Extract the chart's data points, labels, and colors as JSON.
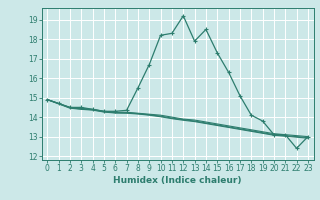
{
  "title": "",
  "xlabel": "Humidex (Indice chaleur)",
  "bg_color": "#cce8e8",
  "grid_color": "#ffffff",
  "line_color": "#2d7d6e",
  "xlim": [
    -0.5,
    23.5
  ],
  "ylim": [
    11.8,
    19.6
  ],
  "yticks": [
    12,
    13,
    14,
    15,
    16,
    17,
    18,
    19
  ],
  "xticks": [
    0,
    1,
    2,
    3,
    4,
    5,
    6,
    7,
    8,
    9,
    10,
    11,
    12,
    13,
    14,
    15,
    16,
    17,
    18,
    19,
    20,
    21,
    22,
    23
  ],
  "main_x": [
    0,
    1,
    2,
    3,
    4,
    5,
    6,
    7,
    8,
    9,
    10,
    11,
    12,
    13,
    14,
    15,
    16,
    17,
    18,
    19,
    20,
    21,
    22,
    23
  ],
  "main_y": [
    14.9,
    14.7,
    14.5,
    14.5,
    14.4,
    14.3,
    14.3,
    14.35,
    15.5,
    16.7,
    18.2,
    18.3,
    19.2,
    17.9,
    18.5,
    17.3,
    16.3,
    15.1,
    14.1,
    13.8,
    13.1,
    13.1,
    12.4,
    13.0
  ],
  "flat1_x": [
    0,
    1,
    2,
    3,
    4,
    5,
    6,
    7,
    8,
    9,
    10,
    11,
    12,
    13,
    14,
    15,
    16,
    17,
    18,
    19,
    20,
    21,
    22,
    23
  ],
  "flat1_y": [
    14.9,
    14.7,
    14.5,
    14.45,
    14.4,
    14.3,
    14.25,
    14.25,
    14.2,
    14.15,
    14.1,
    14.0,
    13.9,
    13.85,
    13.75,
    13.65,
    13.55,
    13.45,
    13.35,
    13.25,
    13.15,
    13.1,
    13.05,
    13.0
  ],
  "flat2_x": [
    0,
    1,
    2,
    3,
    4,
    5,
    6,
    7,
    8,
    9,
    10,
    11,
    12,
    13,
    14,
    15,
    16,
    17,
    18,
    19,
    20,
    21,
    22,
    23
  ],
  "flat2_y": [
    14.9,
    14.7,
    14.48,
    14.42,
    14.38,
    14.28,
    14.23,
    14.22,
    14.18,
    14.12,
    14.05,
    13.95,
    13.87,
    13.8,
    13.7,
    13.6,
    13.5,
    13.4,
    13.3,
    13.2,
    13.1,
    13.05,
    13.0,
    12.95
  ],
  "flat3_x": [
    0,
    1,
    2,
    3,
    4,
    5,
    6,
    7,
    8,
    9,
    10,
    11,
    12,
    13,
    14,
    15,
    16,
    17,
    18,
    19,
    20,
    21,
    22,
    23
  ],
  "flat3_y": [
    14.9,
    14.68,
    14.46,
    14.4,
    14.36,
    14.26,
    14.21,
    14.2,
    14.16,
    14.1,
    14.02,
    13.92,
    13.84,
    13.77,
    13.67,
    13.57,
    13.47,
    13.37,
    13.27,
    13.17,
    13.07,
    13.02,
    12.97,
    12.92
  ],
  "tick_fontsize": 5.5,
  "xlabel_fontsize": 6.5
}
